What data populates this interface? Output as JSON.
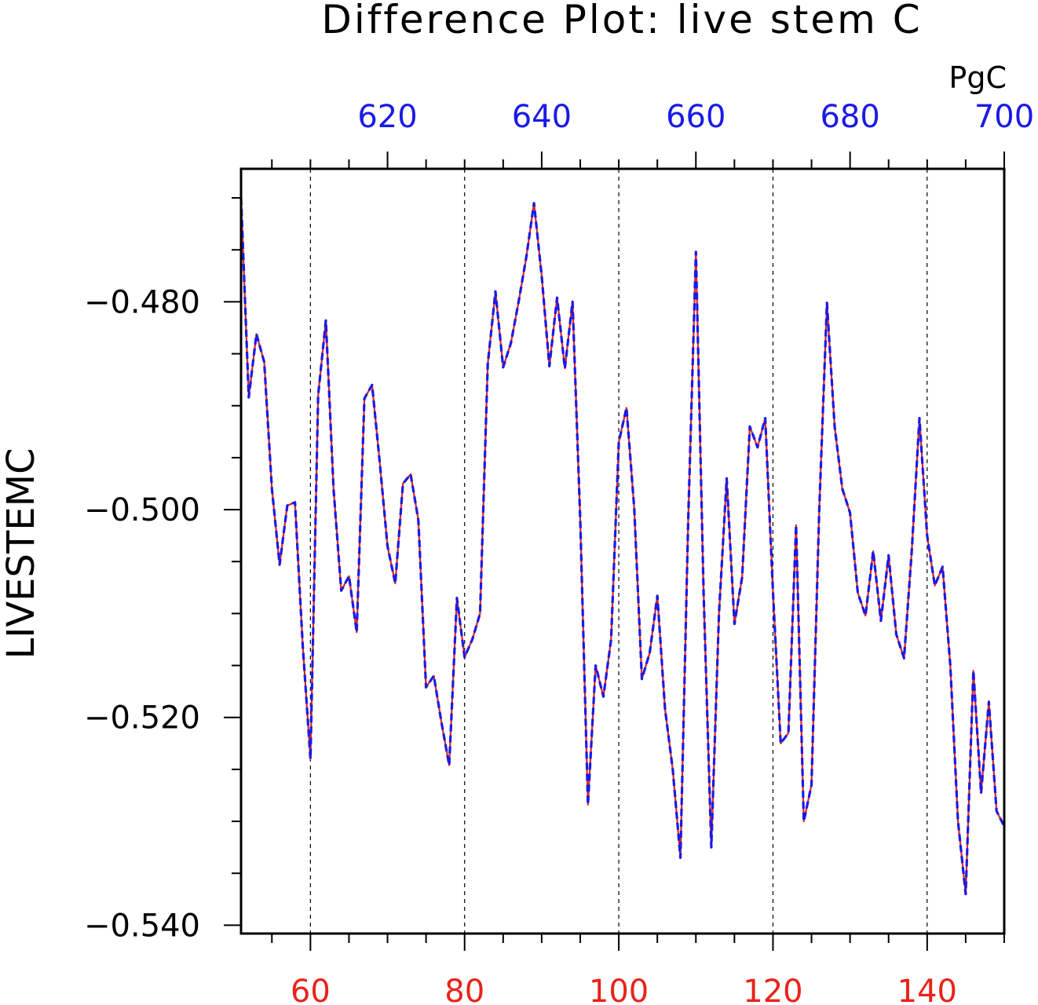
{
  "chart_data": {
    "type": "line",
    "title": "Difference Plot: live stem C",
    "ylabel": "LIVESTEMC",
    "top_axis_units": "PgC",
    "x_bottom": {
      "range": [
        51,
        150
      ],
      "major_ticks": [
        60,
        80,
        100,
        120,
        140
      ],
      "tick_labels": [
        "60",
        "80",
        "100",
        "120",
        "140"
      ],
      "color": "#e8231a"
    },
    "x_top": {
      "range": [
        601,
        700
      ],
      "major_ticks": [
        620,
        640,
        660,
        680,
        700
      ],
      "tick_labels": [
        "620",
        "640",
        "660",
        "680",
        "700"
      ],
      "color": "#1a1ae6"
    },
    "y": {
      "range": [
        -0.5408,
        -0.4672
      ],
      "major_ticks": [
        -0.48,
        -0.5,
        -0.52,
        -0.54
      ],
      "tick_labels": [
        "−0.480",
        "−0.500",
        "−0.520",
        "−0.540"
      ]
    },
    "grid": "vertical dashed lines at major bottom ticks",
    "series": [
      {
        "color": "#e8231a",
        "style": "solid",
        "x": [
          51,
          52,
          53,
          54,
          55,
          56,
          57,
          58,
          59,
          60,
          61,
          62,
          63,
          64,
          65,
          66,
          67,
          68,
          69,
          70,
          71,
          72,
          73,
          74,
          75,
          76,
          77,
          78,
          79,
          80,
          81,
          82,
          83,
          84,
          85,
          86,
          87,
          88,
          89,
          90,
          91,
          92,
          93,
          94,
          95,
          96,
          97,
          98,
          99,
          100,
          101,
          102,
          103,
          104,
          105,
          106,
          107,
          108,
          109,
          110,
          111,
          112,
          113,
          114,
          115,
          116,
          117,
          118,
          119,
          120,
          121,
          122,
          123,
          124,
          125,
          126,
          127,
          128,
          129,
          130,
          131,
          132,
          133,
          134,
          135,
          136,
          137,
          138,
          139,
          140,
          141,
          142,
          143,
          144,
          145,
          146,
          147,
          148,
          149,
          150
        ],
        "y": [
          -0.47,
          -0.4892,
          -0.4831,
          -0.4858,
          -0.498,
          -0.5053,
          -0.4996,
          -0.4993,
          -0.513,
          -0.524,
          -0.489,
          -0.4818,
          -0.498,
          -0.5078,
          -0.5064,
          -0.5118,
          -0.4893,
          -0.488,
          -0.4955,
          -0.5035,
          -0.5071,
          -0.4975,
          -0.4966,
          -0.501,
          -0.5171,
          -0.516,
          -0.5205,
          -0.5246,
          -0.5085,
          -0.5142,
          -0.5125,
          -0.51,
          -0.486,
          -0.479,
          -0.4863,
          -0.484,
          -0.48,
          -0.4757,
          -0.4705,
          -0.4775,
          -0.4862,
          -0.4796,
          -0.4864,
          -0.48,
          -0.501,
          -0.5284,
          -0.515,
          -0.518,
          -0.5125,
          -0.4935,
          -0.4902,
          -0.4998,
          -0.5163,
          -0.5138,
          -0.5083,
          -0.5192,
          -0.525,
          -0.5335,
          -0.501,
          -0.4752,
          -0.508,
          -0.5325,
          -0.51,
          -0.497,
          -0.511,
          -0.5065,
          -0.492,
          -0.494,
          -0.4912,
          -0.508,
          -0.5225,
          -0.5215,
          -0.5015,
          -0.53,
          -0.5265,
          -0.5,
          -0.4801,
          -0.492,
          -0.498,
          -0.5003,
          -0.508,
          -0.5102,
          -0.504,
          -0.5107,
          -0.5044,
          -0.512,
          -0.5143,
          -0.504,
          -0.4912,
          -0.5025,
          -0.5073,
          -0.5055,
          -0.515,
          -0.53,
          -0.537,
          -0.5155,
          -0.5273,
          -0.5185,
          -0.529,
          -0.5305
        ]
      },
      {
        "color": "#1a1ae6",
        "style": "dashed",
        "x": [
          51,
          52,
          53,
          54,
          55,
          56,
          57,
          58,
          59,
          60,
          61,
          62,
          63,
          64,
          65,
          66,
          67,
          68,
          69,
          70,
          71,
          72,
          73,
          74,
          75,
          76,
          77,
          78,
          79,
          80,
          81,
          82,
          83,
          84,
          85,
          86,
          87,
          88,
          89,
          90,
          91,
          92,
          93,
          94,
          95,
          96,
          97,
          98,
          99,
          100,
          101,
          102,
          103,
          104,
          105,
          106,
          107,
          108,
          109,
          110,
          111,
          112,
          113,
          114,
          115,
          116,
          117,
          118,
          119,
          120,
          121,
          122,
          123,
          124,
          125,
          126,
          127,
          128,
          129,
          130,
          131,
          132,
          133,
          134,
          135,
          136,
          137,
          138,
          139,
          140,
          141,
          142,
          143,
          144,
          145,
          146,
          147,
          148,
          149,
          150
        ],
        "y": [
          -0.47,
          -0.4892,
          -0.4831,
          -0.4858,
          -0.498,
          -0.5053,
          -0.4996,
          -0.4993,
          -0.513,
          -0.524,
          -0.489,
          -0.4818,
          -0.498,
          -0.5078,
          -0.5064,
          -0.5118,
          -0.4893,
          -0.488,
          -0.4955,
          -0.5035,
          -0.5071,
          -0.4975,
          -0.4966,
          -0.501,
          -0.5171,
          -0.516,
          -0.5205,
          -0.5246,
          -0.5085,
          -0.5142,
          -0.5125,
          -0.51,
          -0.486,
          -0.479,
          -0.4863,
          -0.484,
          -0.48,
          -0.4757,
          -0.4705,
          -0.4775,
          -0.4862,
          -0.4796,
          -0.4864,
          -0.48,
          -0.501,
          -0.5284,
          -0.515,
          -0.518,
          -0.5125,
          -0.4935,
          -0.4902,
          -0.4998,
          -0.5163,
          -0.5138,
          -0.5083,
          -0.5192,
          -0.525,
          -0.5335,
          -0.501,
          -0.4752,
          -0.508,
          -0.5325,
          -0.51,
          -0.497,
          -0.511,
          -0.5065,
          -0.492,
          -0.494,
          -0.4912,
          -0.508,
          -0.5225,
          -0.5215,
          -0.5015,
          -0.53,
          -0.5265,
          -0.5,
          -0.4801,
          -0.492,
          -0.498,
          -0.5003,
          -0.508,
          -0.5102,
          -0.504,
          -0.5107,
          -0.5044,
          -0.512,
          -0.5143,
          -0.504,
          -0.4912,
          -0.5025,
          -0.5073,
          -0.5055,
          -0.515,
          -0.53,
          -0.537,
          -0.5155,
          -0.5273,
          -0.5185,
          -0.529,
          -0.5305
        ]
      }
    ]
  }
}
